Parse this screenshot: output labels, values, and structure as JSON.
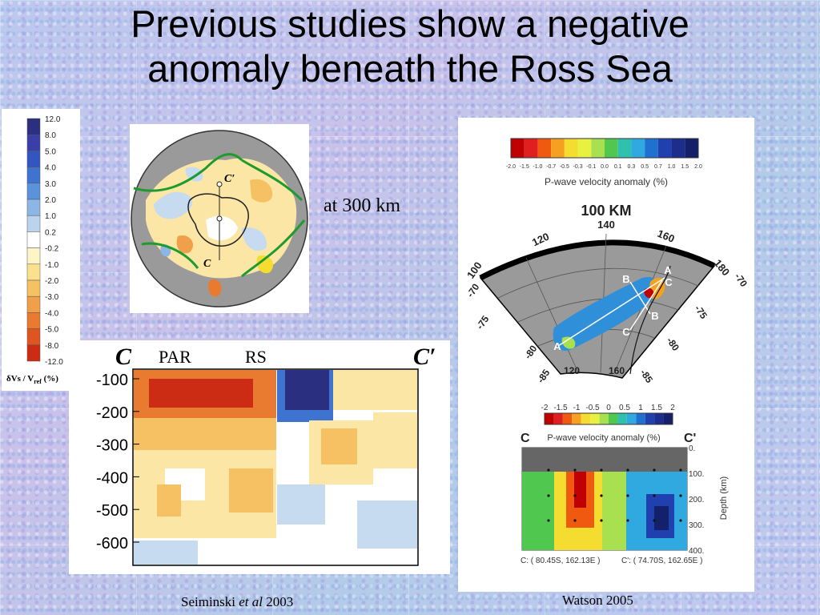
{
  "slide": {
    "title_line1": "Previous studies show a negative",
    "title_line2": "anomaly beneath the Ross Sea",
    "map_depth_note": "at 300 km",
    "caption_left_author": "Seiminski ",
    "caption_left_etal": "et al",
    "caption_left_year": "  2003",
    "caption_right": "Watson 2005"
  },
  "left_colorbar": {
    "ticks": [
      "12.0",
      "8.0",
      "5.0",
      "4.0",
      "3.0",
      "2.0",
      "1.0",
      "0.2",
      "-0.2",
      "-1.0",
      "-2.0",
      "-3.0",
      "-4.0",
      "-5.0",
      "-8.0",
      "-12.0"
    ],
    "colors": [
      "#2a2f7f",
      "#3a3fa8",
      "#3355c2",
      "#3f73d0",
      "#5a92dc",
      "#8cb6e6",
      "#bcd3ee",
      "#ffffff",
      "#fdf5c6",
      "#fbe08e",
      "#f5c163",
      "#f0a04a",
      "#e97b30",
      "#df5520",
      "#cc2b14"
    ],
    "label_prefix": "δVs / V",
    "label_sub": "ref",
    "label_suffix": " (%)"
  },
  "polar_map": {
    "label_c": "C",
    "label_c_prime": "C′"
  },
  "cross_section_left": {
    "label_c": "C",
    "label_c_prime": "C′",
    "region_par": "PAR",
    "region_rs": "RS",
    "depth_ticks": [
      "-100",
      "-200",
      "-300",
      "-400",
      "-500",
      "-600"
    ]
  },
  "watson_panel": {
    "colorbar_ticks": [
      "-2.0",
      "-1.5",
      "-1.0",
      "-0.7",
      "-0.5",
      "-0.3",
      "-0.1",
      "0.0",
      "0.1",
      "0.3",
      "0.5",
      "0.7",
      "1.0",
      "1.5",
      "2.0"
    ],
    "colorbar_colors": [
      "#c00000",
      "#e02020",
      "#f05a10",
      "#f5a020",
      "#f5dc30",
      "#e8f040",
      "#a8e050",
      "#50c850",
      "#30c0b0",
      "#30a8e0",
      "#2070d0",
      "#2040b0",
      "#1c2d8c",
      "#14206a"
    ],
    "colorbar_label": "P-wave velocity anomaly (%)",
    "map_title": "100 KM",
    "lon_labels": [
      "100",
      "120",
      "140",
      "160",
      "180"
    ],
    "lat_labels_left": [
      "-70",
      "-75",
      "-80",
      "-85"
    ],
    "lat_labels_right": [
      "-70",
      "-75",
      "-80",
      "-85"
    ],
    "bottom_lon_labels": [
      "120",
      "160"
    ],
    "profile_points": [
      "A",
      "B",
      "C",
      "A",
      "B",
      "C"
    ],
    "section_colorbar_ticks": [
      "-2",
      "-1.5",
      "-1",
      "-0.5",
      "0",
      "0.5",
      "1",
      "1.5",
      "2"
    ],
    "section_colorbar_label": "P-wave velocity anomaly (%)",
    "section_label_c": "C",
    "section_label_c_prime": "C'",
    "depth_ticks": [
      "0.",
      "100.",
      "200.",
      "300.",
      "400."
    ],
    "depth_axis_label": "Depth (km)",
    "endpoint_c": "C: ( 80.45S, 162.13E )",
    "endpoint_c_prime": "C': ( 74.70S, 162.65E )"
  }
}
